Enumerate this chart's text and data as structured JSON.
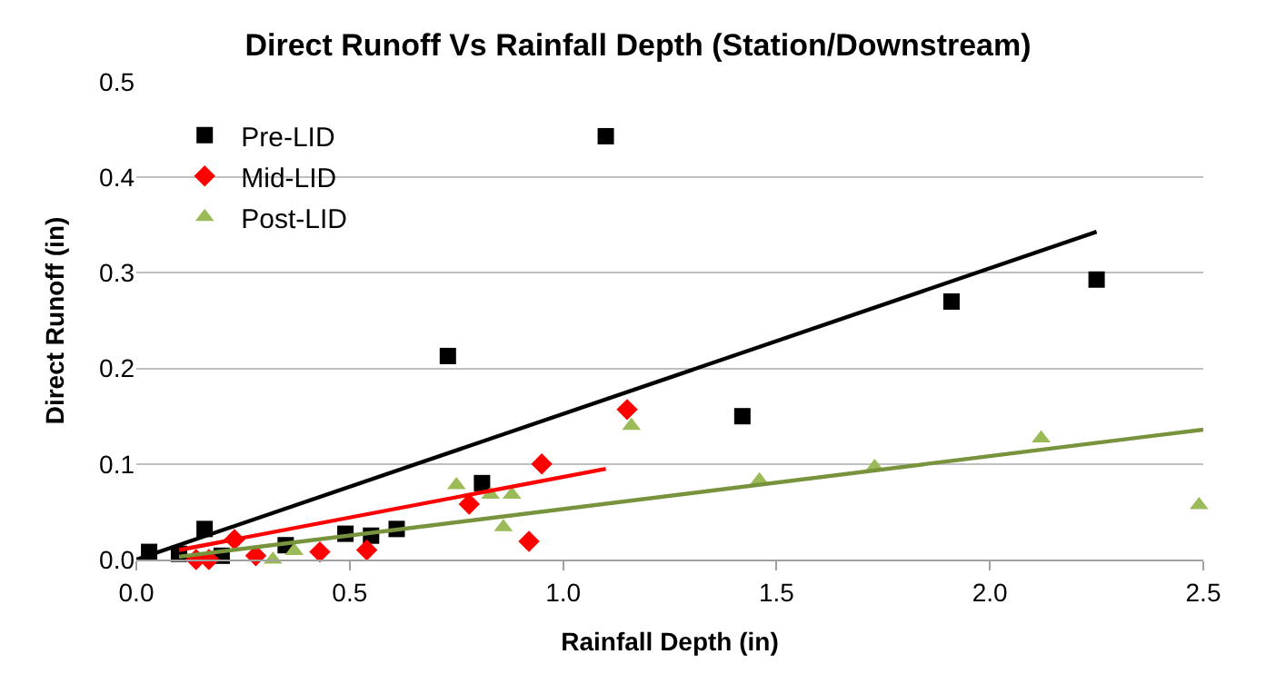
{
  "chart_data": {
    "type": "scatter",
    "title": "Direct Runoff Vs Rainfall Depth (Station/Downstream)",
    "xlabel": "Rainfall Depth (in)",
    "ylabel": "Direct Runoff (in)",
    "xlim": [
      0,
      2.5
    ],
    "xticks": [
      {
        "value": 0,
        "label": "0.0"
      },
      0.5,
      {
        "value": 1,
        "label": "1.0"
      },
      1.5,
      {
        "value": 2,
        "label": "2.0"
      },
      2.5
    ],
    "ylim": [
      0,
      0.5
    ],
    "yticks": [
      {
        "value": 0,
        "label": "0.0"
      },
      0.1,
      0.2,
      0.3,
      0.4,
      0.5
    ],
    "grid": "y",
    "legend": "top left",
    "series": [
      {
        "name": "Pre-LID",
        "color": "#000000",
        "marker": "square",
        "x": [
          0.03,
          0.1,
          0.16,
          0.2,
          0.35,
          0.49,
          0.55,
          0.61,
          0.73,
          0.81,
          1.1,
          1.42,
          1.91,
          2.25
        ],
        "values": [
          0.008,
          0.006,
          0.032,
          0.004,
          0.015,
          0.027,
          0.025,
          0.032,
          0.213,
          0.08,
          0.443,
          0.15,
          0.27,
          0.293
        ]
      },
      {
        "name": "Mid-LID",
        "color": "#ff0000",
        "marker": "diamond",
        "x": [
          0.14,
          0.17,
          0.23,
          0.28,
          0.43,
          0.54,
          0.78,
          0.92,
          0.95,
          1.15
        ],
        "values": [
          0.0,
          0.0,
          0.021,
          0.004,
          0.008,
          0.01,
          0.058,
          0.019,
          0.1,
          0.157
        ]
      },
      {
        "name": "Post-LID",
        "color": "#9bbb59",
        "marker": "triangle",
        "x": [
          0.32,
          0.37,
          0.75,
          0.83,
          0.86,
          0.88,
          1.16,
          1.46,
          1.73,
          2.12,
          2.49
        ],
        "values": [
          0.0,
          0.009,
          0.078,
          0.068,
          0.034,
          0.068,
          0.14,
          0.083,
          0.097,
          0.127,
          0.057
        ]
      },
      {
        "type": "line",
        "color": "#000000",
        "marker": "none",
        "x": [
          0.0,
          2.25
        ],
        "values": [
          0.0,
          0.343
        ]
      },
      {
        "type": "line",
        "color": "#ff0000",
        "marker": "none",
        "x": [
          0.1,
          1.1
        ],
        "values": [
          0.01,
          0.095
        ]
      },
      {
        "type": "line",
        "color": "#77933c",
        "marker": "none",
        "x": [
          0.1,
          2.5
        ],
        "values": [
          0.003,
          0.136
        ]
      }
    ]
  }
}
